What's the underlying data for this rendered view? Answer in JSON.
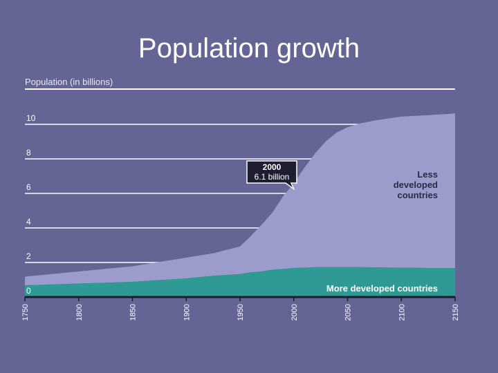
{
  "slide": {
    "title": "Population growth"
  },
  "chart_data": {
    "type": "area",
    "title": "",
    "ylabel": "Population (in billions)",
    "xlabel": "",
    "xlim": [
      1750,
      2150
    ],
    "ylim": [
      0,
      11
    ],
    "yticks": [
      0,
      2,
      4,
      6,
      8,
      10
    ],
    "xticks": [
      1750,
      1800,
      1850,
      1900,
      1950,
      2000,
      2050,
      2100,
      2150
    ],
    "x": [
      1750,
      1800,
      1850,
      1900,
      1925,
      1950,
      1960,
      1970,
      1980,
      1990,
      2000,
      2010,
      2020,
      2030,
      2040,
      2050,
      2060,
      2075,
      2100,
      2125,
      2150
    ],
    "series": [
      {
        "name": "More developed countries",
        "color": "#2f9a93",
        "values": [
          0.2,
          0.3,
          0.4,
          0.6,
          0.75,
          0.85,
          0.95,
          1.0,
          1.1,
          1.15,
          1.2,
          1.22,
          1.25,
          1.25,
          1.25,
          1.25,
          1.25,
          1.24,
          1.22,
          1.2,
          1.2
        ]
      },
      {
        "name": "Less developed countries",
        "color": "#9b9ccc",
        "values": [
          0.5,
          0.7,
          0.9,
          1.2,
          1.3,
          1.6,
          2.1,
          2.7,
          3.3,
          4.2,
          4.9,
          5.8,
          6.6,
          7.3,
          7.8,
          8.1,
          8.3,
          8.5,
          8.75,
          8.85,
          8.95
        ]
      }
    ],
    "annotations": [
      {
        "year_label": "2000",
        "value_label": "6.1 billion",
        "x": 2000,
        "y": 6.1
      }
    ],
    "series_labels": {
      "less": [
        "Less",
        "developed",
        "countries"
      ],
      "more": "More developed countries"
    },
    "grid": true
  }
}
